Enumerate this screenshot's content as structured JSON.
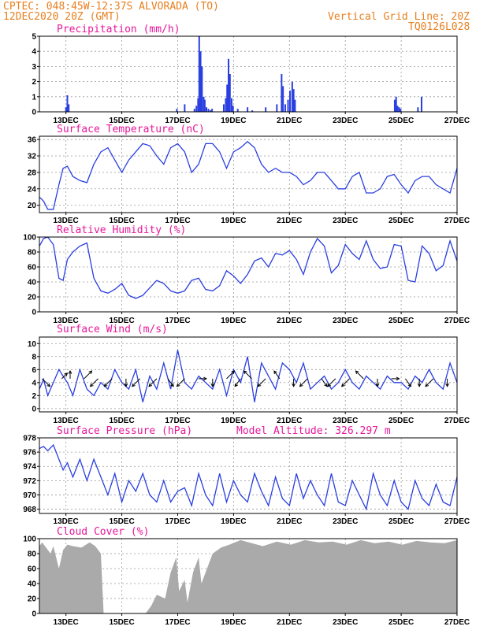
{
  "header": {
    "line1": "CPTEC:   048:45W-12:37S  ALVORADA (TO)",
    "line2": "12DEC2020 20Z (GMT)",
    "grid_note": "Vertical Grid Line: 20Z",
    "code": "TQ0126L028"
  },
  "x_ticks": [
    "13DEC",
    "15DEC",
    "17DEC",
    "19DEC",
    "21DEC",
    "23DEC",
    "25DEC",
    "27DEC"
  ],
  "colors": {
    "header": "#e87f1e",
    "title": "#e8179a",
    "series": "#2a3fe0",
    "cloud": "#aaaaaa"
  },
  "chart_data": [
    {
      "type": "bar",
      "title": "Precipitation (mm/h)",
      "ylim": [
        0,
        5
      ],
      "yticks": [
        0,
        1,
        2,
        3,
        4,
        5
      ],
      "x": [
        0.95,
        1.0,
        1.05,
        4.92,
        5.2,
        5.55,
        5.62,
        5.68,
        5.72,
        5.77,
        5.82,
        5.88,
        5.92,
        5.98,
        6.05,
        6.12,
        6.18,
        6.6,
        6.67,
        6.72,
        6.77,
        6.82,
        6.88,
        6.93,
        7.1,
        7.45,
        7.62,
        8.1,
        8.5,
        8.67,
        8.72,
        8.8,
        8.9,
        8.97,
        9.05,
        9.1,
        9.15,
        12.72,
        12.77,
        12.82,
        12.88,
        12.93,
        13.55,
        13.68
      ],
      "values": [
        0.3,
        1.1,
        0.5,
        0.2,
        0.5,
        0.2,
        0.4,
        0.9,
        5.0,
        4.0,
        3.0,
        1.0,
        0.8,
        0.3,
        0.2,
        0.1,
        0.2,
        0.5,
        0.9,
        1.8,
        3.5,
        2.5,
        0.9,
        0.4,
        0.2,
        0.3,
        0.1,
        0.3,
        0.5,
        2.5,
        1.7,
        0.5,
        0.8,
        1.4,
        2.0,
        1.5,
        0.8,
        0.8,
        1.0,
        0.4,
        0.3,
        0.2,
        0.3,
        1.0
      ]
    },
    {
      "type": "line",
      "title": "Surface Temperature (nC)",
      "ylim": [
        18.2,
        36.8
      ],
      "yticks": [
        20,
        24,
        28,
        32,
        36
      ],
      "x": [
        0,
        0.15,
        0.3,
        0.5,
        0.7,
        0.85,
        1.0,
        1.2,
        1.45,
        1.7,
        1.95,
        2.2,
        2.45,
        2.7,
        2.95,
        3.2,
        3.45,
        3.7,
        3.95,
        4.2,
        4.45,
        4.7,
        4.95,
        5.2,
        5.45,
        5.7,
        5.95,
        6.2,
        6.45,
        6.7,
        6.95,
        7.2,
        7.45,
        7.7,
        7.95,
        8.2,
        8.45,
        8.7,
        8.95,
        9.2,
        9.45,
        9.7,
        9.95,
        10.2,
        10.45,
        10.7,
        10.95,
        11.2,
        11.45,
        11.7,
        11.95,
        12.2,
        12.45,
        12.7,
        12.95,
        13.2,
        13.45,
        13.7,
        13.95,
        14.2,
        14.45,
        14.7,
        14.95
      ],
      "values": [
        22,
        21,
        19,
        19,
        25,
        29,
        29.5,
        27,
        26,
        25.5,
        30,
        33,
        34,
        31,
        28,
        31,
        33,
        35,
        34.5,
        32,
        30,
        34,
        35,
        33,
        28,
        30,
        35,
        35,
        33,
        29,
        33,
        34,
        35.5,
        34,
        30,
        28,
        29,
        28,
        28,
        27,
        25,
        26,
        28,
        28,
        26,
        24,
        24,
        27,
        28,
        23,
        23,
        24,
        27,
        27.5,
        25,
        23,
        26,
        27,
        27,
        25,
        24,
        23,
        29
      ]
    },
    {
      "type": "line",
      "title": "Relative Humidity (%)",
      "ylim": [
        0,
        100
      ],
      "yticks": [
        0,
        20,
        40,
        60,
        80,
        100
      ],
      "x": [
        0,
        0.15,
        0.3,
        0.5,
        0.7,
        0.85,
        1.0,
        1.2,
        1.45,
        1.7,
        1.95,
        2.2,
        2.45,
        2.7,
        2.95,
        3.2,
        3.45,
        3.7,
        3.95,
        4.2,
        4.45,
        4.7,
        4.95,
        5.2,
        5.45,
        5.7,
        5.95,
        6.2,
        6.45,
        6.7,
        6.95,
        7.2,
        7.45,
        7.7,
        7.95,
        8.2,
        8.45,
        8.7,
        8.95,
        9.2,
        9.45,
        9.7,
        9.95,
        10.2,
        10.45,
        10.7,
        10.95,
        11.2,
        11.45,
        11.7,
        11.95,
        12.2,
        12.45,
        12.7,
        12.95,
        13.2,
        13.45,
        13.7,
        13.95,
        14.2,
        14.45,
        14.7,
        14.95
      ],
      "values": [
        88,
        98,
        100,
        90,
        45,
        42,
        70,
        80,
        88,
        92,
        45,
        28,
        25,
        30,
        38,
        22,
        18,
        22,
        32,
        42,
        38,
        28,
        25,
        28,
        42,
        45,
        30,
        28,
        35,
        55,
        48,
        38,
        50,
        68,
        72,
        60,
        78,
        76,
        82,
        70,
        50,
        80,
        98,
        88,
        52,
        62,
        90,
        78,
        70,
        95,
        70,
        58,
        60,
        90,
        88,
        42,
        40,
        88,
        78,
        55,
        62,
        95,
        68
      ]
    },
    {
      "type": "line",
      "title": "Surface Wind (m/s)",
      "ylim": [
        -0.5,
        11
      ],
      "yticks": [
        0,
        2,
        4,
        6,
        8,
        10
      ],
      "x": [
        0,
        0.15,
        0.3,
        0.5,
        0.7,
        0.85,
        1.0,
        1.2,
        1.45,
        1.7,
        1.95,
        2.2,
        2.45,
        2.7,
        2.95,
        3.2,
        3.45,
        3.7,
        3.95,
        4.2,
        4.45,
        4.7,
        4.95,
        5.2,
        5.45,
        5.7,
        5.95,
        6.2,
        6.45,
        6.7,
        6.95,
        7.2,
        7.45,
        7.7,
        7.95,
        8.2,
        8.45,
        8.7,
        8.95,
        9.2,
        9.45,
        9.7,
        9.95,
        10.2,
        10.45,
        10.7,
        10.95,
        11.2,
        11.45,
        11.7,
        11.95,
        12.2,
        12.45,
        12.7,
        12.95,
        13.2,
        13.45,
        13.7,
        13.95,
        14.2,
        14.45,
        14.7,
        14.95
      ],
      "values": [
        3,
        4.5,
        2,
        4,
        6,
        5,
        4,
        2,
        6,
        3,
        2,
        4,
        3,
        6,
        4,
        3,
        6,
        1,
        5,
        3,
        7,
        3,
        9,
        4,
        3,
        5,
        4,
        3,
        6,
        2,
        6,
        4,
        8,
        1,
        7,
        5,
        3,
        7,
        6,
        4,
        7,
        3,
        4,
        5,
        3,
        4,
        6,
        4,
        3,
        5,
        4,
        3,
        5,
        4,
        4,
        3,
        5,
        4,
        6,
        4,
        3,
        7,
        4
      ]
    },
    {
      "type": "line",
      "title": "Surface Pressure (hPa)",
      "annotation": "Model Altitude: 326.297  m",
      "ylim": [
        967.4,
        978
      ],
      "yticks": [
        968,
        970,
        972,
        974,
        976,
        978
      ],
      "x": [
        0,
        0.15,
        0.3,
        0.5,
        0.7,
        0.85,
        1.0,
        1.2,
        1.45,
        1.7,
        1.95,
        2.2,
        2.45,
        2.7,
        2.95,
        3.2,
        3.45,
        3.7,
        3.95,
        4.2,
        4.45,
        4.7,
        4.95,
        5.2,
        5.45,
        5.7,
        5.95,
        6.2,
        6.45,
        6.7,
        6.95,
        7.2,
        7.45,
        7.7,
        7.95,
        8.2,
        8.45,
        8.7,
        8.95,
        9.2,
        9.45,
        9.7,
        9.95,
        10.2,
        10.45,
        10.7,
        10.95,
        11.2,
        11.45,
        11.7,
        11.95,
        12.2,
        12.45,
        12.7,
        12.95,
        13.2,
        13.45,
        13.7,
        13.95,
        14.2,
        14.45,
        14.7,
        14.95
      ],
      "values": [
        976.5,
        976.8,
        976.2,
        977,
        975,
        973.5,
        974.5,
        972.5,
        975,
        972,
        975,
        972.5,
        970,
        973,
        969,
        972,
        970.5,
        973,
        970,
        969,
        972,
        969,
        970.5,
        971,
        968.5,
        973,
        970,
        968.5,
        973,
        969,
        972,
        970,
        969,
        973,
        970.5,
        968.5,
        972.5,
        969.5,
        968.5,
        973,
        969.5,
        972,
        970,
        968.5,
        973,
        969,
        968.5,
        972,
        970,
        968,
        973,
        970,
        968.5,
        972,
        969,
        968,
        972,
        969.5,
        968.5,
        971.5,
        969,
        968.5,
        972.5
      ]
    },
    {
      "type": "area",
      "title": "Cloud Cover (%)",
      "ylim": [
        0,
        100
      ],
      "yticks": [
        0,
        20,
        40,
        60,
        80,
        100
      ],
      "x": [
        0,
        0.1,
        0.4,
        0.5,
        0.7,
        0.85,
        1.0,
        1.2,
        1.5,
        1.8,
        2.0,
        2.2,
        2.3,
        2.6,
        3.0,
        3.5,
        3.8,
        4.0,
        4.2,
        4.5,
        4.7,
        4.9,
        5.0,
        5.2,
        5.3,
        5.5,
        5.7,
        5.8,
        6.0,
        6.2,
        6.5,
        6.8,
        7.0,
        7.2,
        7.5,
        8.0,
        8.5,
        9.0,
        9.5,
        10.0,
        10.5,
        11.0,
        11.5,
        12.0,
        12.5,
        13.0,
        13.5,
        14.0,
        14.5,
        14.95
      ],
      "values": [
        90,
        95,
        80,
        90,
        60,
        85,
        92,
        90,
        88,
        95,
        90,
        80,
        0,
        0,
        0,
        0,
        0,
        10,
        25,
        20,
        55,
        75,
        30,
        45,
        15,
        55,
        75,
        40,
        60,
        80,
        88,
        92,
        95,
        98,
        95,
        90,
        96,
        92,
        98,
        95,
        96,
        92,
        98,
        94,
        96,
        92,
        97,
        95,
        94,
        98
      ]
    }
  ],
  "wind_arrows": [
    {
      "x": 0.1,
      "dx": 7,
      "dy": 7
    },
    {
      "x": 0.8,
      "dx": 5,
      "dy": -5
    },
    {
      "x": 1.1,
      "dx": 0,
      "dy": -7
    },
    {
      "x": 1.6,
      "dx": 7,
      "dy": -7
    },
    {
      "x": 2.1,
      "dx": -7,
      "dy": 7
    },
    {
      "x": 2.6,
      "dx": -7,
      "dy": 7
    },
    {
      "x": 3.1,
      "dx": 0,
      "dy": 7
    },
    {
      "x": 3.6,
      "dx": -7,
      "dy": 7
    },
    {
      "x": 4.2,
      "dx": -7,
      "dy": 7
    },
    {
      "x": 4.6,
      "dx": 5,
      "dy": 7
    },
    {
      "x": 5.2,
      "dx": -7,
      "dy": 7
    },
    {
      "x": 5.7,
      "dx": 7,
      "dy": 0
    },
    {
      "x": 6.2,
      "dx": 0,
      "dy": 7
    },
    {
      "x": 6.7,
      "dx": 7,
      "dy": -7
    },
    {
      "x": 7.2,
      "dx": -5,
      "dy": 7
    },
    {
      "x": 7.6,
      "dx": -7,
      "dy": -7
    },
    {
      "x": 8.1,
      "dx": -7,
      "dy": 7
    },
    {
      "x": 8.6,
      "dx": -5,
      "dy": -7
    },
    {
      "x": 9.1,
      "dx": 0,
      "dy": 7
    },
    {
      "x": 9.6,
      "dx": -7,
      "dy": 7
    },
    {
      "x": 10.1,
      "dx": 5,
      "dy": 7
    },
    {
      "x": 10.6,
      "dx": -7,
      "dy": 7
    },
    {
      "x": 11.1,
      "dx": -7,
      "dy": 7
    },
    {
      "x": 11.6,
      "dx": -7,
      "dy": -7
    },
    {
      "x": 12.1,
      "dx": 0,
      "dy": 7
    },
    {
      "x": 12.6,
      "dx": 7,
      "dy": 0
    },
    {
      "x": 13.1,
      "dx": 5,
      "dy": 7
    },
    {
      "x": 13.6,
      "dx": 0,
      "dy": 7
    },
    {
      "x": 14.1,
      "dx": -7,
      "dy": 7
    },
    {
      "x": 14.6,
      "dx": 0,
      "dy": 7
    }
  ]
}
